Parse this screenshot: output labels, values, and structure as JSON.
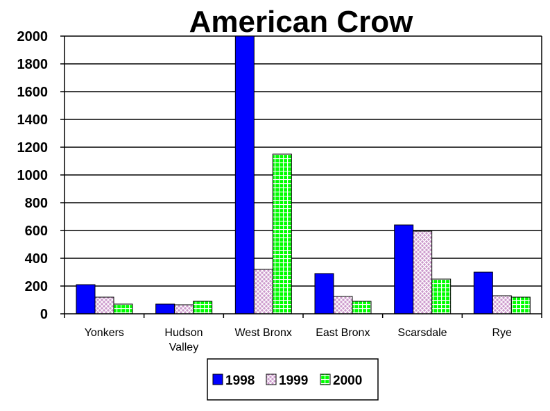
{
  "chart_data": {
    "type": "bar",
    "title": "American Crow",
    "xlabel": "",
    "ylabel": "",
    "ylim": [
      0,
      2000
    ],
    "yticks": [
      "0",
      "200",
      "400",
      "600",
      "800",
      "1000",
      "1200",
      "1400",
      "1600",
      "1800",
      "2000"
    ],
    "grid": true,
    "legend_position": "bottom",
    "categories": [
      [
        "Yonkers"
      ],
      [
        "Hudson",
        "Valley"
      ],
      [
        "West Bronx"
      ],
      [
        "East Bronx"
      ],
      [
        "Scarsdale"
      ],
      [
        "Rye"
      ]
    ],
    "series": [
      {
        "name": "1998",
        "color": "#0000ff",
        "pattern": "solid",
        "values": [
          210,
          70,
          2000,
          290,
          640,
          300
        ]
      },
      {
        "name": "1999",
        "color": "#cc99cc",
        "pattern": "crosshatch",
        "values": [
          120,
          65,
          320,
          125,
          595,
          130
        ]
      },
      {
        "name": "2000",
        "color": "#00ff00",
        "pattern": "grid",
        "values": [
          70,
          90,
          1150,
          90,
          250,
          120
        ]
      }
    ]
  }
}
